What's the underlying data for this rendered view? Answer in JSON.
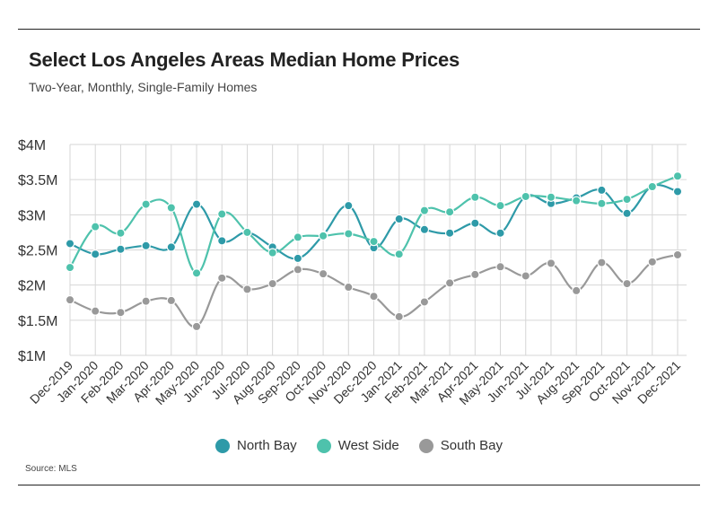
{
  "header": {
    "title": "Select Los Angeles Areas Median Home Prices",
    "subtitle": "Two-Year, Monthly, Single-Family Homes"
  },
  "source": "Source:  MLS",
  "colors": {
    "north_bay": "#2e9aa8",
    "west_side": "#4ec2ac",
    "south_bay": "#999999",
    "grid": "#d6d6d6",
    "axis_text": "#333333"
  },
  "chart_data": {
    "type": "line",
    "x": [
      "Dec-2019",
      "Jan-2020",
      "Feb-2020",
      "Mar-2020",
      "Apr-2020",
      "May-2020",
      "Jun-2020",
      "Jul-2020",
      "Aug-2020",
      "Sep-2020",
      "Oct-2020",
      "Nov-2020",
      "Dec-2020",
      "Jan-2021",
      "Feb-2021",
      "Mar-2021",
      "Apr-2021",
      "May-2021",
      "Jun-2021",
      "Jul-2021",
      "Aug-2021",
      "Sep-2021",
      "Oct-2021",
      "Nov-2021",
      "Dec-2021"
    ],
    "yticks": [
      1,
      1.5,
      2,
      2.5,
      3,
      3.5,
      4
    ],
    "ytick_labels": [
      "$1M",
      "$1.5M",
      "$2M",
      "$2.5M",
      "$3M",
      "$3.5M",
      "$4M"
    ],
    "ylim": [
      1,
      4
    ],
    "grid": true,
    "legend_position": "bottom",
    "series": [
      {
        "name": "North Bay",
        "color": "#2e9aa8",
        "values": [
          2.59,
          2.44,
          2.51,
          2.56,
          2.54,
          3.15,
          2.63,
          2.75,
          2.54,
          2.38,
          2.71,
          3.13,
          2.53,
          2.94,
          2.79,
          2.74,
          2.88,
          2.74,
          3.26,
          3.16,
          3.24,
          3.35,
          3.02,
          3.41,
          3.33
        ]
      },
      {
        "name": "West Side",
        "color": "#4ec2ac",
        "values": [
          2.25,
          2.83,
          2.74,
          3.15,
          3.1,
          2.17,
          3.01,
          2.75,
          2.46,
          2.68,
          2.7,
          2.73,
          2.62,
          2.44,
          3.06,
          3.04,
          3.25,
          3.13,
          3.26,
          3.25,
          3.2,
          3.16,
          3.22,
          3.4,
          3.55
        ]
      },
      {
        "name": "South Bay",
        "color": "#999999",
        "values": [
          1.79,
          1.63,
          1.61,
          1.77,
          1.78,
          1.41,
          2.1,
          1.94,
          2.02,
          2.22,
          2.16,
          1.97,
          1.84,
          1.55,
          1.76,
          2.03,
          2.15,
          2.26,
          2.13,
          2.31,
          1.92,
          2.32,
          2.02,
          2.33,
          2.43
        ]
      }
    ]
  }
}
